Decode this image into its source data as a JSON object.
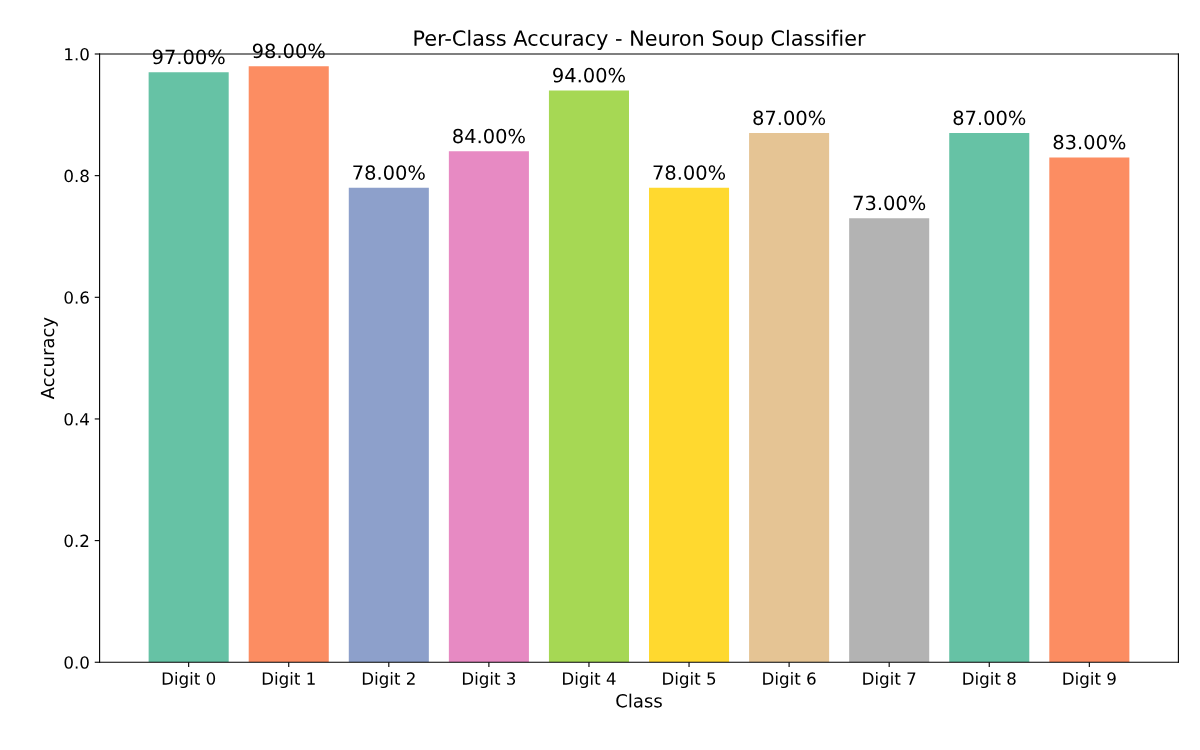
{
  "chart_data": {
    "type": "bar",
    "title": "Per-Class Accuracy - Neuron Soup Classifier",
    "xlabel": "Class",
    "ylabel": "Accuracy",
    "categories": [
      "Digit 0",
      "Digit 1",
      "Digit 2",
      "Digit 3",
      "Digit 4",
      "Digit 5",
      "Digit 6",
      "Digit 7",
      "Digit 8",
      "Digit 9"
    ],
    "values": [
      0.97,
      0.98,
      0.78,
      0.84,
      0.94,
      0.78,
      0.87,
      0.73,
      0.87,
      0.83
    ],
    "value_labels": [
      "97.00%",
      "98.00%",
      "78.00%",
      "84.00%",
      "94.00%",
      "78.00%",
      "87.00%",
      "73.00%",
      "87.00%",
      "83.00%"
    ],
    "colors": [
      "#66c2a5",
      "#fc8d62",
      "#8da0cb",
      "#e78ac3",
      "#a6d854",
      "#ffd92f",
      "#e5c494",
      "#b3b3b3",
      "#66c2a5",
      "#fc8d62"
    ],
    "ylim": [
      0,
      1
    ],
    "yticks": [
      {
        "value": 0,
        "label": "0.0"
      },
      {
        "value": 0.2,
        "label": "0.2"
      },
      {
        "value": 0.4,
        "label": "0.4"
      },
      {
        "value": 0.6,
        "label": "0.6"
      },
      {
        "value": 0.8,
        "label": "0.8"
      },
      {
        "value": 1,
        "label": "1.0"
      }
    ],
    "grid": false,
    "legend": false
  }
}
